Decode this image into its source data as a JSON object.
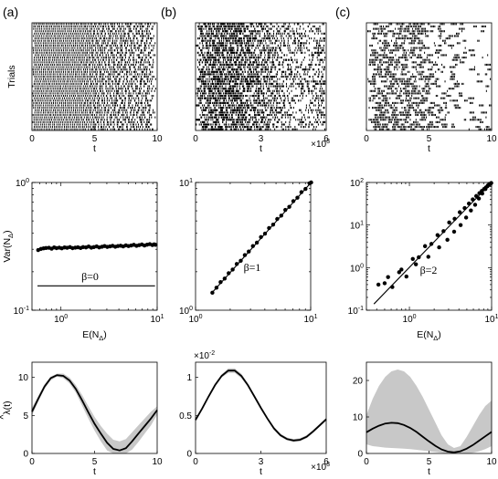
{
  "panel_labels": [
    "(a)",
    "(b)",
    "(c)"
  ],
  "chart_data": [
    {
      "type": "scatter",
      "id": "raster-a",
      "ylabel": "Trials",
      "xlabel": "t",
      "x_ticks": [
        0,
        5,
        10
      ],
      "xlim": [
        0,
        10
      ],
      "trials": 45,
      "note": "spike raster, regular firing"
    },
    {
      "type": "scatter",
      "id": "raster-b",
      "xlabel": "t",
      "x_ticks": [
        0,
        3,
        6
      ],
      "x_multiplier": "×10",
      "x_multiplier_exp": "3",
      "xlim": [
        0,
        6
      ],
      "trials": 45,
      "note": "spike raster, Poisson firing"
    },
    {
      "type": "scatter",
      "id": "raster-c",
      "xlabel": "t",
      "x_ticks": [
        0,
        5,
        10
      ],
      "xlim": [
        0,
        10
      ],
      "trials": 45,
      "note": "spike raster, bursty firing"
    },
    {
      "type": "scatter",
      "id": "fano-a",
      "xlabel": "E(N",
      "xlabel_sub": "Δ",
      "xlabel_end": ")",
      "ylabel": "Var(N",
      "ylabel_sub": "Δ",
      "ylabel_end": ")",
      "xscale": "log",
      "yscale": "log",
      "xlim": [
        0.5,
        10
      ],
      "ylim": [
        0.1,
        1
      ],
      "x_ticks": [
        {
          "v": 1,
          "base": "10",
          "exp": "0"
        },
        {
          "v": 10,
          "base": "10",
          "exp": "1"
        }
      ],
      "y_ticks": [
        {
          "v": 0.1,
          "base": "10",
          "exp": "-1"
        },
        {
          "v": 1,
          "base": "10",
          "exp": "0"
        }
      ],
      "annotation": "β=0",
      "fit_line": {
        "x": [
          0.57,
          9.5
        ],
        "y": [
          0.155,
          0.155
        ]
      },
      "points_x": [
        0.58,
        0.62,
        0.66,
        0.7,
        0.75,
        0.8,
        0.85,
        0.9,
        0.96,
        1.02,
        1.09,
        1.16,
        1.24,
        1.32,
        1.41,
        1.5,
        1.6,
        1.7,
        1.82,
        1.94,
        2.07,
        2.2,
        2.35,
        2.5,
        2.67,
        2.84,
        3.03,
        3.23,
        3.44,
        3.67,
        3.91,
        4.17,
        4.44,
        4.73,
        5.04,
        5.37,
        5.72,
        6.1,
        6.5,
        6.93,
        7.38,
        7.86,
        8.38,
        8.93,
        9.3,
        9.6
      ],
      "points_y": [
        0.296,
        0.302,
        0.305,
        0.307,
        0.308,
        0.303,
        0.31,
        0.306,
        0.309,
        0.305,
        0.31,
        0.308,
        0.312,
        0.306,
        0.309,
        0.311,
        0.307,
        0.312,
        0.31,
        0.315,
        0.309,
        0.312,
        0.316,
        0.31,
        0.314,
        0.318,
        0.313,
        0.316,
        0.319,
        0.314,
        0.318,
        0.32,
        0.316,
        0.322,
        0.318,
        0.321,
        0.325,
        0.319,
        0.323,
        0.327,
        0.321,
        0.326,
        0.329,
        0.324,
        0.328,
        0.325
      ]
    },
    {
      "type": "scatter",
      "id": "fano-b",
      "xscale": "log",
      "yscale": "log",
      "xlim": [
        1,
        10
      ],
      "ylim": [
        1,
        10
      ],
      "x_ticks": [
        {
          "v": 1,
          "base": "10",
          "exp": "0"
        },
        {
          "v": 10,
          "base": "10",
          "exp": "1"
        }
      ],
      "y_ticks": [
        {
          "v": 1,
          "base": "10",
          "exp": "0"
        },
        {
          "v": 10,
          "base": "10",
          "exp": "1"
        }
      ],
      "annotation": "β=1",
      "fit_line": {
        "x": [
          1.4,
          10.2
        ],
        "y": [
          1.38,
          10.1
        ]
      },
      "points_x": [
        1.4,
        1.52,
        1.65,
        1.79,
        1.94,
        2.1,
        2.28,
        2.47,
        2.68,
        2.9,
        3.15,
        3.41,
        3.7,
        4.01,
        4.35,
        4.72,
        5.12,
        5.55,
        6.02,
        6.52,
        7.07,
        7.67,
        8.31,
        9.01,
        9.77,
        10.1
      ],
      "points_y": [
        1.37,
        1.5,
        1.66,
        1.77,
        1.95,
        2.08,
        2.3,
        2.44,
        2.7,
        2.88,
        3.18,
        3.38,
        3.74,
        3.98,
        4.4,
        4.68,
        5.18,
        5.5,
        6.1,
        6.45,
        7.15,
        7.6,
        8.4,
        8.9,
        9.85,
        10.0
      ]
    },
    {
      "type": "scatter",
      "id": "fano-c",
      "xlabel": "E(N",
      "xlabel_sub": "Δ",
      "xlabel_end": ")",
      "xscale": "log",
      "yscale": "log",
      "xlim": [
        0.3,
        10
      ],
      "ylim": [
        0.1,
        100
      ],
      "x_ticks": [
        {
          "v": 1,
          "base": "10",
          "exp": "0"
        },
        {
          "v": 10,
          "base": "10",
          "exp": "1"
        }
      ],
      "y_ticks": [
        {
          "v": 0.1,
          "base": "10",
          "exp": "-1"
        },
        {
          "v": 1,
          "base": "10",
          "exp": "0"
        },
        {
          "v": 10,
          "base": "10",
          "exp": "1"
        },
        {
          "v": 100,
          "base": "10",
          "exp": "2"
        }
      ],
      "annotation": "β=2",
      "fit_line": {
        "x": [
          0.37,
          10
        ],
        "y": [
          0.14,
          100
        ]
      },
      "points_x": [
        0.42,
        0.5,
        0.62,
        0.75,
        0.92,
        1.1,
        1.3,
        1.55,
        1.85,
        2.2,
        2.6,
        3.05,
        3.55,
        4.1,
        4.7,
        5.3,
        5.9,
        6.5,
        7.1,
        7.6,
        8.1,
        8.5,
        8.9,
        9.3,
        9.6,
        9.9,
        0.55,
        0.8,
        1.2,
        1.7,
        2.3,
        2.9,
        3.5,
        4.2,
        4.9,
        5.6,
        6.3,
        7.0,
        7.7,
        8.4,
        9.0
      ],
      "points_y": [
        0.4,
        0.43,
        0.35,
        0.78,
        0.62,
        1.6,
        1.75,
        3.2,
        3.6,
        5.8,
        7.2,
        11.5,
        14,
        20,
        25,
        32,
        40,
        48,
        56,
        63,
        70,
        76,
        82,
        88,
        93,
        97,
        0.6,
        0.9,
        1.2,
        1.8,
        3.0,
        4.5,
        7.0,
        10,
        15,
        22,
        30,
        42,
        55,
        70,
        85
      ]
    },
    {
      "type": "line",
      "id": "rate-a",
      "xlabel": "t",
      "ylabel": "λ(t)",
      "ylabel_hat": "^",
      "xlim": [
        0,
        10
      ],
      "ylim": [
        0,
        12
      ],
      "x_ticks": [
        0,
        5,
        10
      ],
      "y_ticks": [
        0,
        5,
        10
      ],
      "x": [
        0,
        0.5,
        1,
        1.5,
        2,
        2.5,
        3,
        3.5,
        4,
        4.5,
        5,
        5.5,
        6,
        6.5,
        7,
        7.5,
        8,
        8.5,
        9,
        9.5,
        10
      ],
      "y": [
        5.5,
        7.2,
        8.8,
        9.9,
        10.3,
        10.2,
        9.6,
        8.5,
        7.0,
        5.4,
        3.9,
        2.6,
        1.4,
        0.6,
        0.4,
        0.7,
        1.6,
        2.6,
        3.6,
        4.6,
        5.7
      ],
      "upper": [
        6.0,
        7.6,
        9.1,
        10.1,
        10.5,
        10.5,
        10.0,
        9.0,
        7.7,
        6.2,
        4.8,
        3.6,
        2.6,
        1.8,
        1.6,
        1.9,
        2.8,
        3.7,
        4.6,
        5.5,
        6.2
      ],
      "lower": [
        5.0,
        6.8,
        8.5,
        9.6,
        10.1,
        9.9,
        9.2,
        8.0,
        6.3,
        4.6,
        3.0,
        1.6,
        0.4,
        0.0,
        0.0,
        0.0,
        0.5,
        1.5,
        2.6,
        3.7,
        5.1
      ]
    },
    {
      "type": "line",
      "id": "rate-b",
      "xlabel": "t",
      "xlim": [
        0,
        6
      ],
      "ylim": [
        0,
        0.012
      ],
      "x_ticks": [
        0,
        3,
        6
      ],
      "x_multiplier": "×10",
      "x_multiplier_exp": "3",
      "y_tick_labels": [
        "0",
        "0.5",
        "1"
      ],
      "y_ticks": [
        0,
        0.005,
        0.01
      ],
      "y_multiplier": "×10",
      "y_multiplier_exp": "-2",
      "x": [
        0,
        0.3,
        0.6,
        0.9,
        1.2,
        1.5,
        1.8,
        2.1,
        2.4,
        2.7,
        3.0,
        3.3,
        3.6,
        3.9,
        4.2,
        4.5,
        4.8,
        5.1,
        5.4,
        5.7,
        6.0
      ],
      "y": [
        0.0044,
        0.0059,
        0.0075,
        0.009,
        0.0102,
        0.0109,
        0.0109,
        0.0102,
        0.009,
        0.0075,
        0.006,
        0.0046,
        0.0033,
        0.0024,
        0.0019,
        0.0017,
        0.0018,
        0.0022,
        0.0029,
        0.0037,
        0.0045
      ],
      "upper": [
        0.0046,
        0.0061,
        0.0077,
        0.0092,
        0.0104,
        0.0112,
        0.0112,
        0.0105,
        0.0092,
        0.0077,
        0.0062,
        0.0048,
        0.0035,
        0.0026,
        0.0021,
        0.0019,
        0.002,
        0.0024,
        0.0031,
        0.0039,
        0.0047
      ],
      "lower": [
        0.0042,
        0.0057,
        0.0073,
        0.0088,
        0.01,
        0.0106,
        0.0106,
        0.0099,
        0.0088,
        0.0073,
        0.0058,
        0.0044,
        0.0031,
        0.0022,
        0.0017,
        0.0015,
        0.0016,
        0.002,
        0.0027,
        0.0035,
        0.0043
      ]
    },
    {
      "type": "line",
      "id": "rate-c",
      "xlabel": "t",
      "xlim": [
        0,
        10
      ],
      "ylim": [
        0,
        25
      ],
      "x_ticks": [
        0,
        5,
        10
      ],
      "y_ticks": [
        0,
        10,
        20
      ],
      "x": [
        0,
        0.5,
        1,
        1.5,
        2,
        2.5,
        3,
        3.5,
        4,
        4.5,
        5,
        5.5,
        6,
        6.5,
        7,
        7.5,
        8,
        8.5,
        9,
        9.5,
        10
      ],
      "y": [
        5.8,
        6.8,
        7.6,
        8.2,
        8.4,
        8.3,
        7.8,
        7.0,
        5.9,
        4.6,
        3.3,
        2.1,
        1.1,
        0.5,
        0.3,
        0.6,
        1.3,
        2.3,
        3.5,
        4.7,
        5.9
      ],
      "upper": [
        10.5,
        15.0,
        18.5,
        21.0,
        22.5,
        23.0,
        22.5,
        21.0,
        18.5,
        15.5,
        12.0,
        8.5,
        5.0,
        2.5,
        1.5,
        2.0,
        4.5,
        7.5,
        10.5,
        13.0,
        14.5
      ],
      "lower": [
        2.5,
        2.0,
        1.8,
        1.6,
        1.5,
        1.4,
        1.3,
        1.2,
        1.0,
        0.8,
        0.6,
        0.4,
        0.2,
        0.0,
        0.0,
        0.0,
        0.0,
        0.2,
        0.6,
        1.2,
        2.0
      ]
    }
  ]
}
